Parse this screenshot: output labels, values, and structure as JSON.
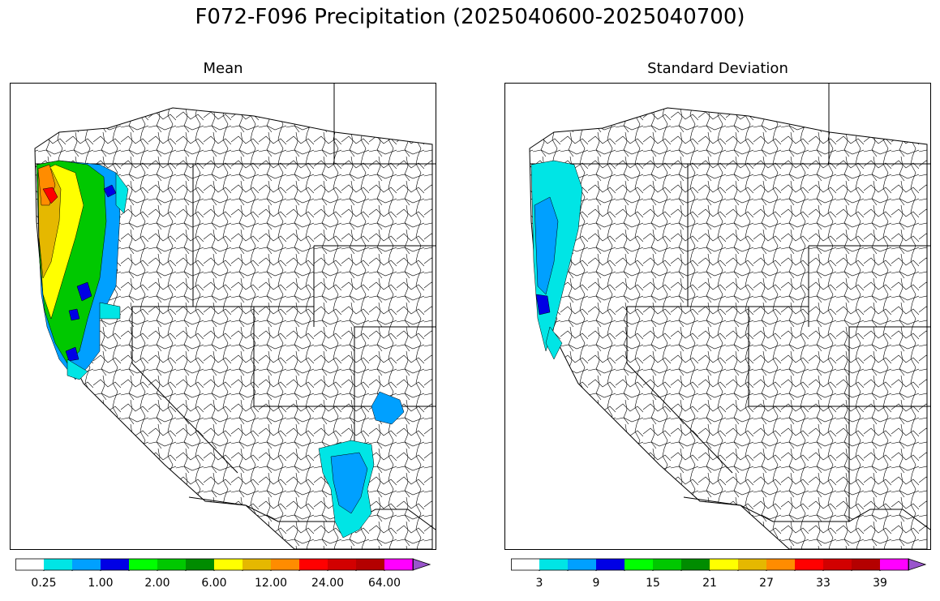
{
  "title": "F072-F096 Precipitation (2025040600-2025040700)",
  "panels": [
    {
      "title": "Mean",
      "colorbar": {
        "colors": [
          "#ffffff",
          "#00e5e5",
          "#00a0ff",
          "#0000e5",
          "#00ff00",
          "#00c800",
          "#008c00",
          "#ffff00",
          "#e5b800",
          "#ff8c00",
          "#ff0000",
          "#d20000",
          "#b40000",
          "#ff00ff",
          "#9955cc"
        ],
        "tick_labels": [
          "0.25",
          "1.00",
          "2.00",
          "6.00",
          "12.00",
          "24.00",
          "64.00"
        ]
      }
    },
    {
      "title": "Standard Deviation",
      "colorbar": {
        "colors": [
          "#ffffff",
          "#00e5e5",
          "#00a0ff",
          "#0000e5",
          "#00ff00",
          "#00c800",
          "#008c00",
          "#ffff00",
          "#e5b800",
          "#ff8c00",
          "#ff0000",
          "#d20000",
          "#b40000",
          "#ff00ff",
          "#9955cc"
        ],
        "tick_labels": [
          "3",
          "9",
          "15",
          "21",
          "27",
          "33",
          "39"
        ]
      }
    }
  ]
}
